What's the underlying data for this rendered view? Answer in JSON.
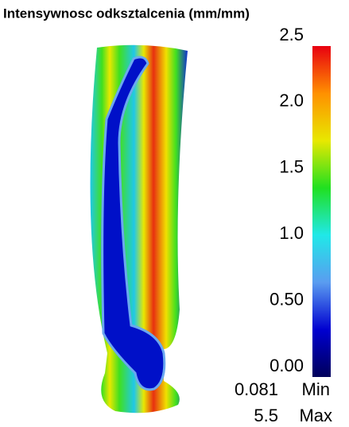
{
  "chart_data": {
    "type": "contour",
    "title": "Intensywnosc odksztalcenia (mm/mm)",
    "zlim": [
      0,
      2.5
    ],
    "zticks": [
      {
        "value": 0,
        "label": "0.00"
      },
      {
        "value": 0.5,
        "label": "0.50"
      },
      {
        "value": 1,
        "label": "1.0"
      },
      1.5,
      {
        "value": 2,
        "label": "2.0"
      },
      2.5
    ],
    "colormap": [
      "#00005a",
      "#0000d0",
      "#5a9cf0",
      "#20e8e8",
      "#20e020",
      "#e8e800",
      "#ff9000",
      "#e80010"
    ],
    "min_value": 0.081,
    "min_label": "Min",
    "max_value": 5.5,
    "max_label": "Max"
  }
}
